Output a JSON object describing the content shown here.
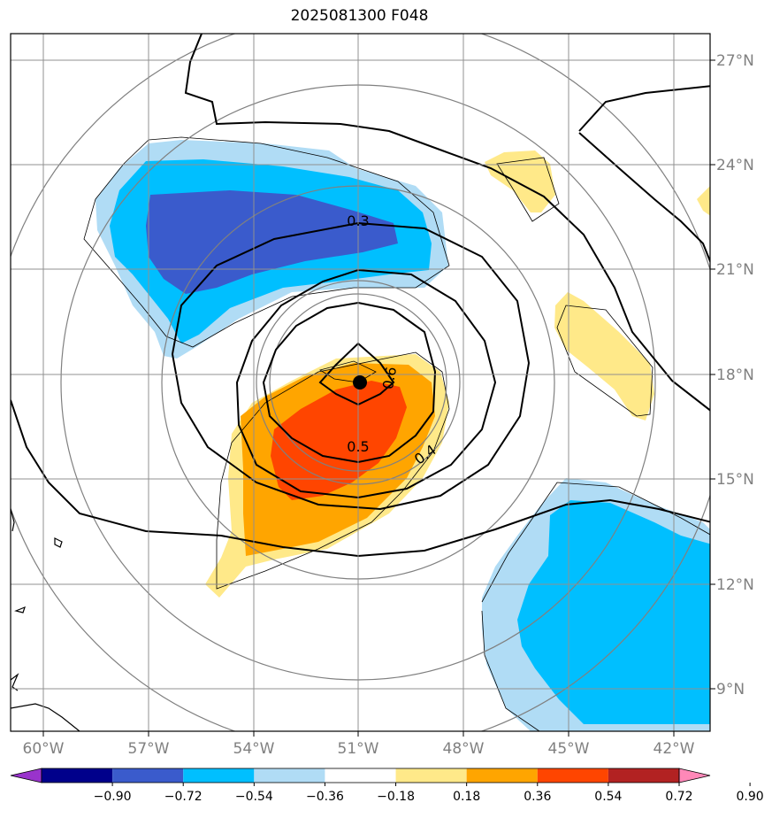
{
  "title": "2025081300 F048",
  "map": {
    "lat_labels": [
      "27°N",
      "24°N",
      "21°N",
      "18°N",
      "15°N",
      "12°N",
      "9°N"
    ],
    "lon_labels": [
      "60°W",
      "57°W",
      "54°W",
      "51°W",
      "48°W",
      "45°W",
      "42°W"
    ],
    "extent": {
      "lon_min": -61,
      "lon_max": -41,
      "lat_min": 7.8,
      "lat_max": 28.1
    },
    "center_marker": {
      "lon": -51,
      "lat": 17.7
    },
    "contour_labels": [
      "0.3",
      "0.6",
      "0.5",
      "0.4"
    ]
  },
  "colorbar": {
    "labels": [
      "−0.90",
      "−0.72",
      "−0.54",
      "−0.36",
      "−0.18",
      "0.18",
      "0.36",
      "0.54",
      "0.72",
      "0.90"
    ],
    "colors": [
      "#9933cc",
      "#00008b",
      "#3a5bcc",
      "#00bfff",
      "#b0dcf5",
      "#ffffff",
      "#ffe989",
      "#ffa500",
      "#ff4500",
      "#b22222",
      "#ff88b8"
    ]
  }
}
